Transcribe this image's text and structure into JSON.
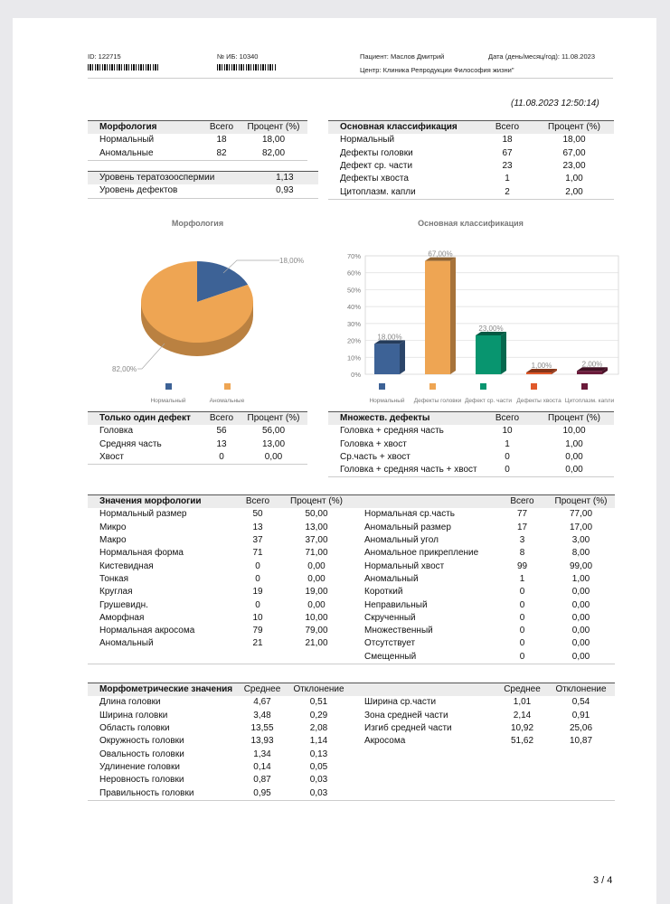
{
  "header": {
    "id": "ID: 122715",
    "ib": "№ ИБ: 10340",
    "patient": "Пациент: Маслов Дмитрий",
    "date": "Дата (день/месяц/год): 11.08.2023",
    "center": "Центр: Клиника Репродукции Философия жизни\"",
    "timestamp": "(11.08.2023  12:50:14)"
  },
  "tables": {
    "morph": {
      "header": [
        "Морфология",
        "Всего",
        "Процент (%)"
      ],
      "rows": [
        [
          "Нормальный",
          "18",
          "18,00"
        ],
        [
          "Аномальные",
          "82",
          "82,00"
        ]
      ]
    },
    "levels": {
      "rows": [
        [
          "Уровень тератозооспермии",
          "",
          "1,13"
        ],
        [
          "Уровень дефектов",
          "",
          "0,93"
        ]
      ]
    },
    "main": {
      "header": [
        "Основная классификация",
        "Всего",
        "Процент (%)"
      ],
      "rows": [
        [
          "Нормальный",
          "18",
          "18,00"
        ],
        [
          "Дефекты головки",
          "67",
          "67,00"
        ],
        [
          "Дефект ср. части",
          "23",
          "23,00"
        ],
        [
          "Дефекты хвоста",
          "1",
          "1,00"
        ],
        [
          "Цитоплазм. капли",
          "2",
          "2,00"
        ]
      ]
    },
    "single": {
      "header": [
        "Только один дефект",
        "Всего",
        "Процент (%)"
      ],
      "rows": [
        [
          "Головка",
          "56",
          "56,00"
        ],
        [
          "Средняя часть",
          "13",
          "13,00"
        ],
        [
          "Хвост",
          "0",
          "0,00"
        ]
      ]
    },
    "multi": {
      "header": [
        "Множеств. дефекты",
        "Всего",
        "Процент (%)"
      ],
      "rows": [
        [
          "Головка + средняя часть",
          "10",
          "10,00"
        ],
        [
          "Головка + хвост",
          "1",
          "1,00"
        ],
        [
          "Ср.часть + хвост",
          "0",
          "0,00"
        ],
        [
          "Головка + средняя часть + хвост",
          "0",
          "0,00"
        ]
      ]
    },
    "values": {
      "header": [
        "Значения морфологии",
        "Всего",
        "Процент (%)",
        "",
        "Всего",
        "Процент (%)"
      ],
      "rows": [
        [
          "Нормальный размер",
          "50",
          "50,00",
          "Нормальная ср.часть",
          "77",
          "77,00"
        ],
        [
          "Микро",
          "13",
          "13,00",
          "Аномальный размер",
          "17",
          "17,00"
        ],
        [
          "Макро",
          "37",
          "37,00",
          "Аномальный угол",
          "3",
          "3,00"
        ],
        [
          "Нормальная форма",
          "71",
          "71,00",
          "Аномальное прикрепление",
          "8",
          "8,00"
        ],
        [
          "Кистевидная",
          "0",
          "0,00",
          "Нормальный хвост",
          "99",
          "99,00"
        ],
        [
          "Тонкая",
          "0",
          "0,00",
          "Аномальный",
          "1",
          "1,00"
        ],
        [
          "Круглая",
          "19",
          "19,00",
          "Короткий",
          "0",
          "0,00"
        ],
        [
          "Грушевидн.",
          "0",
          "0,00",
          "Неправильный",
          "0",
          "0,00"
        ],
        [
          "Аморфная",
          "10",
          "10,00",
          "Скрученный",
          "0",
          "0,00"
        ],
        [
          "Нормальная акросома",
          "79",
          "79,00",
          "Множественный",
          "0",
          "0,00"
        ],
        [
          "Аномальный",
          "21",
          "21,00",
          "Отсутствует",
          "0",
          "0,00"
        ],
        [
          "",
          "",
          "",
          "Смещенный",
          "0",
          "0,00"
        ]
      ]
    },
    "morphometric": {
      "header": [
        "Морфометрические значения",
        "Среднее",
        "Отклонение",
        "",
        "Среднее",
        "Отклонение"
      ],
      "rows": [
        [
          "Длина головки",
          "4,67",
          "0,51",
          "Ширина ср.части",
          "1,01",
          "0,54"
        ],
        [
          "Ширина головки",
          "3,48",
          "0,29",
          "Зона средней части",
          "2,14",
          "0,91"
        ],
        [
          "Область головки",
          "13,55",
          "2,08",
          "Изгиб средней части",
          "10,92",
          "25,06"
        ],
        [
          "Окружность головки",
          "13,93",
          "1,14",
          "Акросома",
          "51,62",
          "10,87"
        ],
        [
          "Овальность головки",
          "1,34",
          "0,13",
          "",
          "",
          ""
        ],
        [
          "Удлинение головки",
          "0,14",
          "0,05",
          "",
          "",
          ""
        ],
        [
          "Неровность головки",
          "0,87",
          "0,03",
          "",
          "",
          ""
        ],
        [
          "Правильность головки",
          "0,95",
          "0,03",
          "",
          "",
          ""
        ]
      ]
    }
  },
  "chart_data": [
    {
      "type": "pie",
      "title": "Морфология",
      "categories": [
        "Нормальный",
        "Аномальные"
      ],
      "values": [
        18,
        82
      ],
      "data_labels": [
        "18,00%",
        "82,00%"
      ],
      "colors": [
        "#3d6296",
        "#eea553"
      ],
      "legend": "bottom"
    },
    {
      "type": "bar",
      "title": "Основная классификация",
      "categories": [
        "Нормальный",
        "Дефекты головки",
        "Дефект ср. части",
        "Дефекты хвоста",
        "Цитоплазм. капли"
      ],
      "values": [
        18,
        67,
        23,
        1,
        2
      ],
      "data_labels": [
        "18,00%",
        "67,00%",
        "23,00%",
        "1,00%",
        "2,00%"
      ],
      "colors": [
        "#3d6296",
        "#eea553",
        "#08956f",
        "#e0592a",
        "#6a1a3a"
      ],
      "ylim": [
        0,
        70
      ],
      "yticks": [
        "0%",
        "10%",
        "20%",
        "30%",
        "40%",
        "50%",
        "60%",
        "70%"
      ],
      "grid": true,
      "legend": "bottom"
    }
  ],
  "footer": {
    "page": "3 / 4"
  }
}
